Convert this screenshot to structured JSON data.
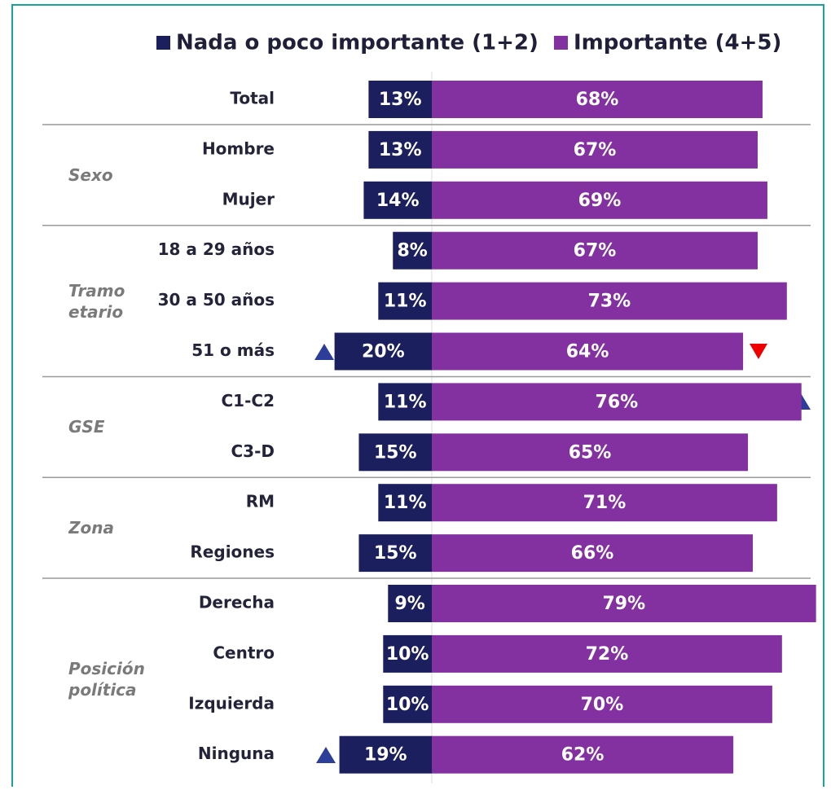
{
  "chart_data": {
    "type": "bar",
    "orientation": "horizontal",
    "layout": "diverging",
    "categories": [
      "Total",
      "Hombre",
      "Mujer",
      "18 a 29 años",
      "30 a 50 años",
      "51 o más",
      "C1-C2",
      "C3-D",
      "RM",
      "Regiones",
      "Derecha",
      "Centro",
      "Izquierda",
      "Ninguna"
    ],
    "groups": [
      {
        "name": "Sexo",
        "count": 2
      },
      {
        "name": "Tramo etario",
        "count": 3
      },
      {
        "name": "GSE",
        "count": 2
      },
      {
        "name": "Zona",
        "count": 2
      },
      {
        "name": "Posición política",
        "count": 4
      }
    ],
    "series": [
      {
        "name": "Nada o poco importante (1+2)",
        "color": "#1b1f5e",
        "values": [
          13,
          13,
          14,
          8,
          11,
          20,
          11,
          15,
          11,
          15,
          9,
          10,
          10,
          19
        ],
        "value_labels": [
          "13%",
          "13%",
          "14%",
          "8%",
          "11%",
          "20%",
          "11%",
          "15%",
          "11%",
          "15%",
          "9%",
          "10%",
          "10%",
          "19%"
        ]
      },
      {
        "name": "Importante (4+5)",
        "color": "#8331a0",
        "values": [
          68,
          67,
          69,
          67,
          73,
          64,
          76,
          65,
          71,
          66,
          79,
          72,
          70,
          62
        ],
        "value_labels": [
          "68%",
          "67%",
          "69%",
          "67%",
          "73%",
          "64%",
          "76%",
          "65%",
          "71%",
          "66%",
          "79%",
          "72%",
          "70%",
          "62%"
        ]
      }
    ]
  }
}
